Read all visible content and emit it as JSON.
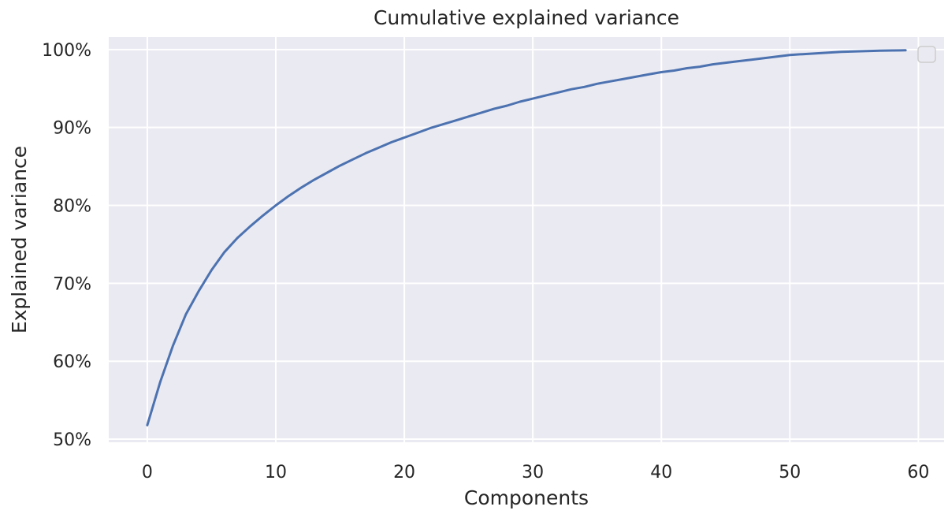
{
  "chart_data": {
    "type": "line",
    "title": "Cumulative explained variance",
    "xlabel": "Components",
    "ylabel": "Explained variance",
    "xlim": [
      -3,
      62
    ],
    "ylim": [
      49.6,
      101.6
    ],
    "xticks": [
      0,
      10,
      20,
      30,
      40,
      50,
      60
    ],
    "yticks": [
      50,
      60,
      70,
      80,
      90,
      100
    ],
    "ytick_labels": [
      "50%",
      "60%",
      "70%",
      "80%",
      "90%",
      "100%"
    ],
    "xtick_labels": [
      "0",
      "10",
      "20",
      "30",
      "40",
      "50",
      "60"
    ],
    "grid": true,
    "legend": "top-right (empty)",
    "series": [
      {
        "color": "#4c72b0",
        "x": [
          0,
          1,
          2,
          3,
          4,
          5,
          6,
          7,
          8,
          9,
          10,
          11,
          12,
          13,
          14,
          15,
          16,
          17,
          18,
          19,
          20,
          21,
          22,
          23,
          24,
          25,
          26,
          27,
          28,
          29,
          30,
          31,
          32,
          33,
          34,
          35,
          36,
          37,
          38,
          39,
          40,
          41,
          42,
          43,
          44,
          45,
          46,
          47,
          48,
          49,
          50,
          51,
          52,
          53,
          54,
          55,
          56,
          57,
          58,
          59
        ],
        "y": [
          51.8,
          57.3,
          62.0,
          66.0,
          69.0,
          71.7,
          74.0,
          75.8,
          77.3,
          78.7,
          80.0,
          81.2,
          82.3,
          83.3,
          84.2,
          85.1,
          85.9,
          86.7,
          87.4,
          88.1,
          88.7,
          89.3,
          89.9,
          90.4,
          90.9,
          91.4,
          91.9,
          92.4,
          92.8,
          93.3,
          93.7,
          94.1,
          94.5,
          94.9,
          95.2,
          95.6,
          95.9,
          96.2,
          96.5,
          96.8,
          97.1,
          97.3,
          97.6,
          97.8,
          98.1,
          98.3,
          98.5,
          98.7,
          98.9,
          99.1,
          99.3,
          99.4,
          99.5,
          99.6,
          99.7,
          99.75,
          99.8,
          99.85,
          99.88,
          99.9
        ]
      }
    ]
  },
  "colors": {
    "plot_background": "#eaeaf2",
    "grid": "#ffffff",
    "line": "#4c72b0",
    "text": "#262626"
  }
}
